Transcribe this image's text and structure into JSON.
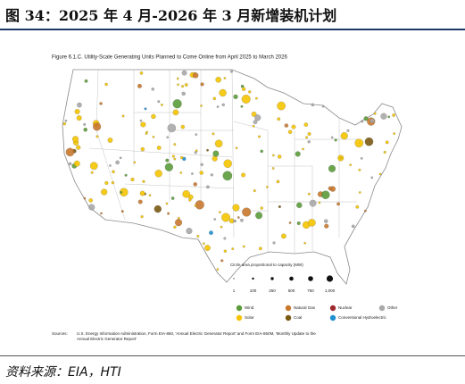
{
  "header": {
    "title": "图 34：2025 年 4 月-2026 年 3 月新增装机计划"
  },
  "figure": {
    "title": "Figure 6.1.C. Utility-Scale Generating Units Planned to Come Online from April 2025 to March 2026",
    "size_legend": {
      "title": "Circle area proportional to capacity (MW)",
      "labels": [
        "1",
        "100",
        "250",
        "500",
        "750",
        "1,000"
      ]
    },
    "legend": [
      {
        "label": "Wind",
        "color": "#5b9b3a"
      },
      {
        "label": "Natural Gas",
        "color": "#c8782c"
      },
      {
        "label": "Nuclear",
        "color": "#9e2a2f"
      },
      {
        "label": "Other",
        "color": "#a9a9a9"
      },
      {
        "label": "Solar",
        "color": "#f5c400"
      },
      {
        "label": "Coal",
        "color": "#7a5a12"
      },
      {
        "label": "Conventional Hydroelectric",
        "color": "#1e8fd0"
      }
    ],
    "sources": {
      "label": "Sources:",
      "lines": [
        "U.S. Energy Information Administration, Form EIA-860, 'Annual Electric Generator Report' and Form EIA-860M, 'Monthly Update to the",
        "Annual Electric Generator Report'"
      ]
    }
  },
  "footer": {
    "source": "资料来源：EIA，HTI"
  }
}
